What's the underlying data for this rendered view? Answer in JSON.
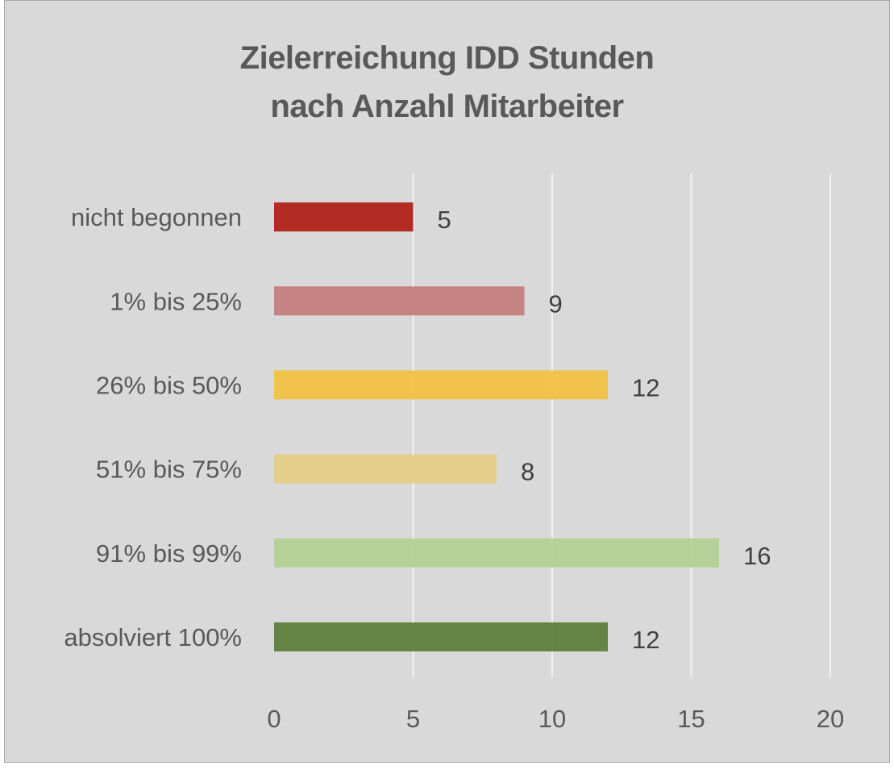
{
  "chart_data": {
    "type": "bar",
    "orientation": "horizontal",
    "title": "Zielerreichung IDD Stunden nach Anzahl Mitarbeiter",
    "title_lines": [
      "Zielerreichung IDD Stunden",
      "nach Anzahl Mitarbeiter"
    ],
    "xlabel": "",
    "ylabel": "",
    "categories": [
      "nicht begonnen",
      "1% bis 25%",
      "26% bis 50%",
      "51% bis 75%",
      "91% bis 99%",
      "absolviert 100%"
    ],
    "values": [
      5,
      9,
      12,
      8,
      16,
      12
    ],
    "data_labels": [
      "5",
      "9",
      "12",
      "8",
      "16",
      "12"
    ],
    "colors": [
      "#b0231a",
      "#c47f7c",
      "#f2c244",
      "#e5cf86",
      "#b3d195",
      "#5e7f3c"
    ],
    "xlim": [
      0,
      20
    ],
    "xticks": [
      0,
      5,
      10,
      15,
      20
    ],
    "xtick_labels": [
      "0",
      "5",
      "10",
      "15",
      "20"
    ],
    "grid": "vertical",
    "legend": "none",
    "background": "#d9d9d9"
  }
}
